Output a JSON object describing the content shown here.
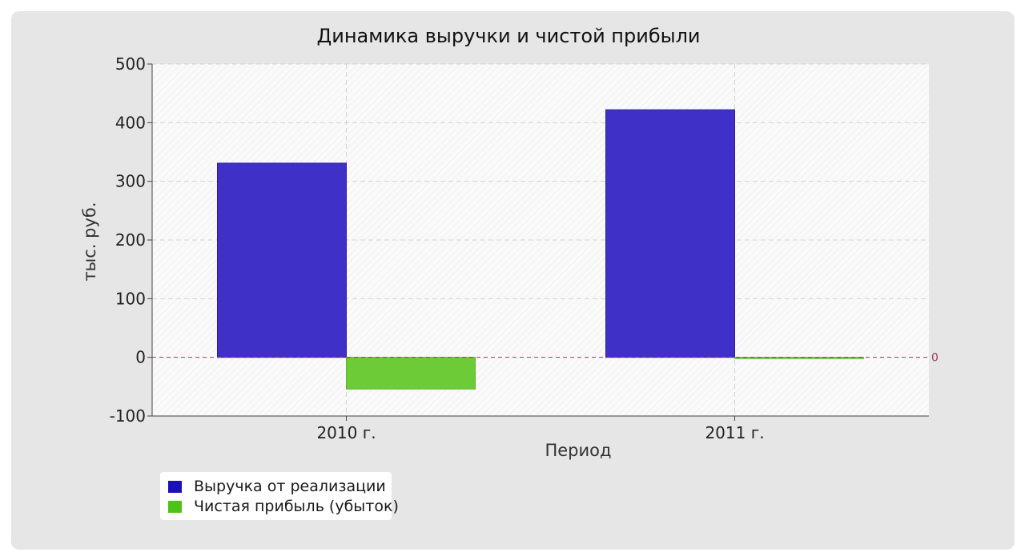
{
  "colors": {
    "revenue": "#3f30c8",
    "revenue_swatch": "#1a0fb8",
    "profit": "#6ccb36",
    "profit_swatch": "#4fc21a",
    "zero_line": "#9b3b55"
  },
  "chart_data": {
    "type": "bar",
    "title": "Динамика выручки и чистой прибыли",
    "xlabel": "Период",
    "ylabel": "тыс. руб.",
    "categories": [
      "2010 г.",
      "2011 г."
    ],
    "series": [
      {
        "name": "Выручка от реализации",
        "values": [
          331,
          422
        ]
      },
      {
        "name": "Чистая прибыль (убыток)",
        "values": [
          -54,
          -2
        ]
      }
    ],
    "ylim": [
      -100,
      500
    ],
    "yticks": [
      -100,
      0,
      100,
      200,
      300,
      400,
      500
    ],
    "zero_line_label": "0",
    "grid": true,
    "legend_position": "bottom-left"
  }
}
